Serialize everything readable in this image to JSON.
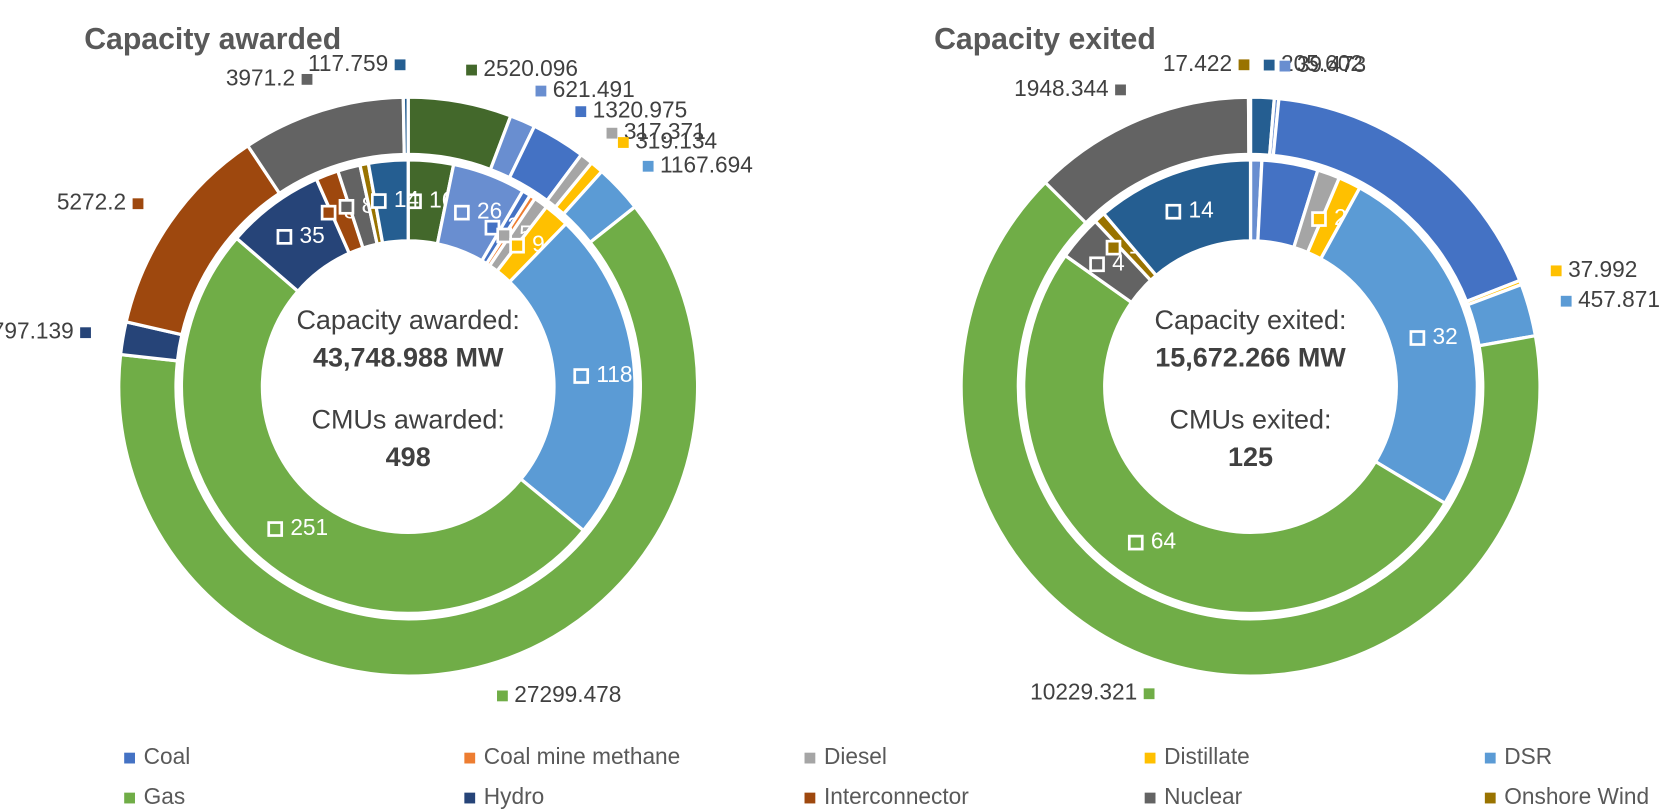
{
  "chart_data": [
    {
      "type": "donut",
      "title": "Capacity awarded",
      "total_label": "Capacity awarded:",
      "total": {
        "value": 43748.988,
        "label": "43,748.988 MW"
      },
      "count_label": "CMUs awarded:",
      "count": 498,
      "outer": {
        "values": [
          2520.096,
          621.491,
          1320.975,
          317.371,
          319.134,
          1167.694,
          27299.478,
          797.139,
          5272.2,
          3971.2,
          117.759
        ],
        "value_labels": [
          "2520.096",
          "621.491",
          "1320.975",
          "317.371",
          "319.134",
          "1167.694",
          "27299.478",
          "797.139",
          "5272.2",
          "3971.2",
          "117.759"
        ],
        "colors": [
          "#43682b",
          "#698ed0",
          "#4472c4",
          "#a5a5a5",
          "#ffc000",
          "#5b9bd5",
          "#70ad47",
          "#264478",
          "#9e480e",
          "#636363",
          "#255e91"
        ]
      },
      "inner": {
        "values": [
          16,
          26,
          3,
          2,
          5,
          9,
          118,
          251,
          35,
          8,
          8,
          3,
          14
        ],
        "value_labels": [
          "16",
          "26",
          "3",
          null,
          "5",
          "9",
          "118",
          "251",
          "35",
          "8",
          "8",
          null,
          "14"
        ],
        "colors": [
          "#43682b",
          "#698ed0",
          "#4472c4",
          "#ed7d31",
          "#a5a5a5",
          "#ffc000",
          "#5b9bd5",
          "#70ad47",
          "#264478",
          "#9e480e",
          "#636363",
          "#997300",
          "#255e91"
        ]
      }
    },
    {
      "type": "donut",
      "title": "Capacity exited",
      "total_label": "Capacity exited:",
      "total": {
        "value": 15672.266,
        "label": "15,672.266 MW"
      },
      "count_label": "CMUs exited:",
      "count": 125,
      "outer": {
        "values": [
          205.602,
          39.473,
          2736.241,
          37.992,
          457.871,
          10229.321,
          1948.344,
          17.422
        ],
        "value_labels": [
          "205.602",
          "39.473",
          null,
          "37.992",
          "457.871",
          "10229.321",
          "1948.344",
          "17.422"
        ],
        "colors": [
          "#255e91",
          "#698ed0",
          "#4472c4",
          "#ffc000",
          "#5b9bd5",
          "#70ad47",
          "#636363",
          "#997300"
        ]
      },
      "inner": {
        "values": [
          1,
          5,
          2,
          2,
          32,
          64,
          4,
          1,
          14
        ],
        "value_labels": [
          "1",
          null,
          null,
          "2",
          "32",
          "64",
          "4",
          "1",
          "14"
        ],
        "colors": [
          "#698ed0",
          "#4472c4",
          "#a5a5a5",
          "#ffc000",
          "#5b9bd5",
          "#70ad47",
          "#636363",
          "#997300",
          "#255e91"
        ]
      }
    }
  ],
  "legend": [
    {
      "name": "Coal",
      "color": "#4472c4"
    },
    {
      "name": "Coal mine methane",
      "color": "#ed7d31"
    },
    {
      "name": "Diesel",
      "color": "#a5a5a5"
    },
    {
      "name": "Distillate",
      "color": "#ffc000"
    },
    {
      "name": "DSR",
      "color": "#5b9bd5"
    },
    {
      "name": "Gas",
      "color": "#70ad47"
    },
    {
      "name": "Hydro",
      "color": "#264478"
    },
    {
      "name": "Interconnector",
      "color": "#9e480e"
    },
    {
      "name": "Nuclear",
      "color": "#636363"
    },
    {
      "name": "Onshore Wind",
      "color": "#997300"
    }
  ]
}
